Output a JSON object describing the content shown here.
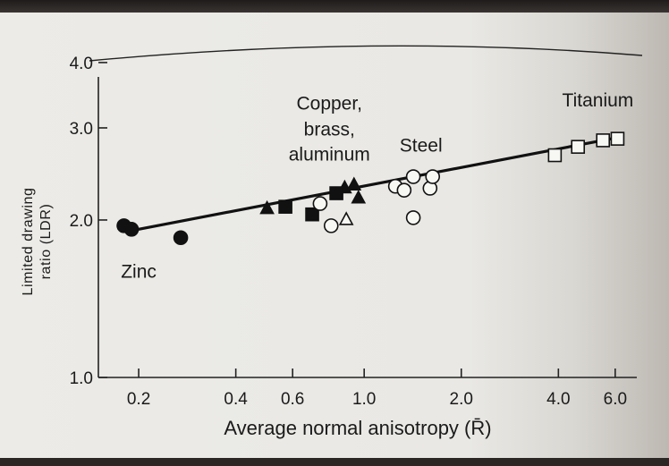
{
  "chart_data": {
    "type": "scatter",
    "xlabel": "Average normal anisotropy (R̄)",
    "ylabel_line1": "Limited drawing",
    "ylabel_line2": "ratio (LDR)",
    "x_scale": "log",
    "y_scale": "log",
    "xlim": [
      0.15,
      7.0
    ],
    "ylim": [
      1.0,
      4.5
    ],
    "x_ticks": [
      {
        "value": 0.2,
        "label": "0.2"
      },
      {
        "value": 0.4,
        "label": "0.4"
      },
      {
        "value": 0.6,
        "label": "0.6"
      },
      {
        "value": 1.0,
        "label": "1.0"
      },
      {
        "value": 2.0,
        "label": "2.0"
      },
      {
        "value": 4.0,
        "label": "4.0"
      },
      {
        "value": 6.0,
        "label": "6.0"
      }
    ],
    "y_ticks": [
      {
        "value": 1.0,
        "label": "1.0"
      },
      {
        "value": 2.0,
        "label": "2.0"
      },
      {
        "value": 3.0,
        "label": "3.0"
      },
      {
        "value": 4.0,
        "label": "4.0"
      }
    ],
    "grid": false,
    "trend_line": [
      [
        0.18,
        1.95
      ],
      [
        0.2,
        1.92
      ],
      [
        6.2,
        2.88
      ]
    ],
    "annotations": [
      {
        "text": "Zinc",
        "x": 0.2,
        "y": 1.55
      },
      {
        "text": "Copper,",
        "x": 0.78,
        "y": 3.25
      },
      {
        "text": "brass,",
        "x": 0.78,
        "y": 2.9
      },
      {
        "text": "aluminum",
        "x": 0.78,
        "y": 2.6
      },
      {
        "text": "Steel",
        "x": 1.5,
        "y": 2.7
      },
      {
        "text": "Titanium",
        "x": 5.3,
        "y": 3.3
      }
    ],
    "series": [
      {
        "marker": "filled-circle",
        "points": [
          [
            0.18,
            1.95
          ],
          [
            0.19,
            1.92
          ],
          [
            0.27,
            1.85
          ]
        ]
      },
      {
        "marker": "filled-triangle",
        "points": [
          [
            0.5,
            2.1
          ],
          [
            0.87,
            2.3
          ],
          [
            0.93,
            2.33
          ],
          [
            0.96,
            2.2
          ]
        ]
      },
      {
        "marker": "filled-square",
        "points": [
          [
            0.57,
            2.12
          ],
          [
            0.69,
            2.05
          ],
          [
            0.82,
            2.25
          ]
        ]
      },
      {
        "marker": "open-circle",
        "points": [
          [
            0.73,
            2.15
          ],
          [
            0.79,
            1.95
          ],
          [
            1.25,
            2.32
          ],
          [
            1.33,
            2.28
          ],
          [
            1.42,
            2.42
          ],
          [
            1.42,
            2.02
          ],
          [
            1.6,
            2.3
          ],
          [
            1.63,
            2.42
          ]
        ]
      },
      {
        "marker": "open-triangle",
        "points": [
          [
            0.88,
            2.0
          ]
        ]
      },
      {
        "marker": "open-square",
        "points": [
          [
            3.9,
            2.66
          ],
          [
            4.6,
            2.76
          ],
          [
            5.5,
            2.84
          ],
          [
            6.1,
            2.86
          ]
        ]
      }
    ]
  }
}
